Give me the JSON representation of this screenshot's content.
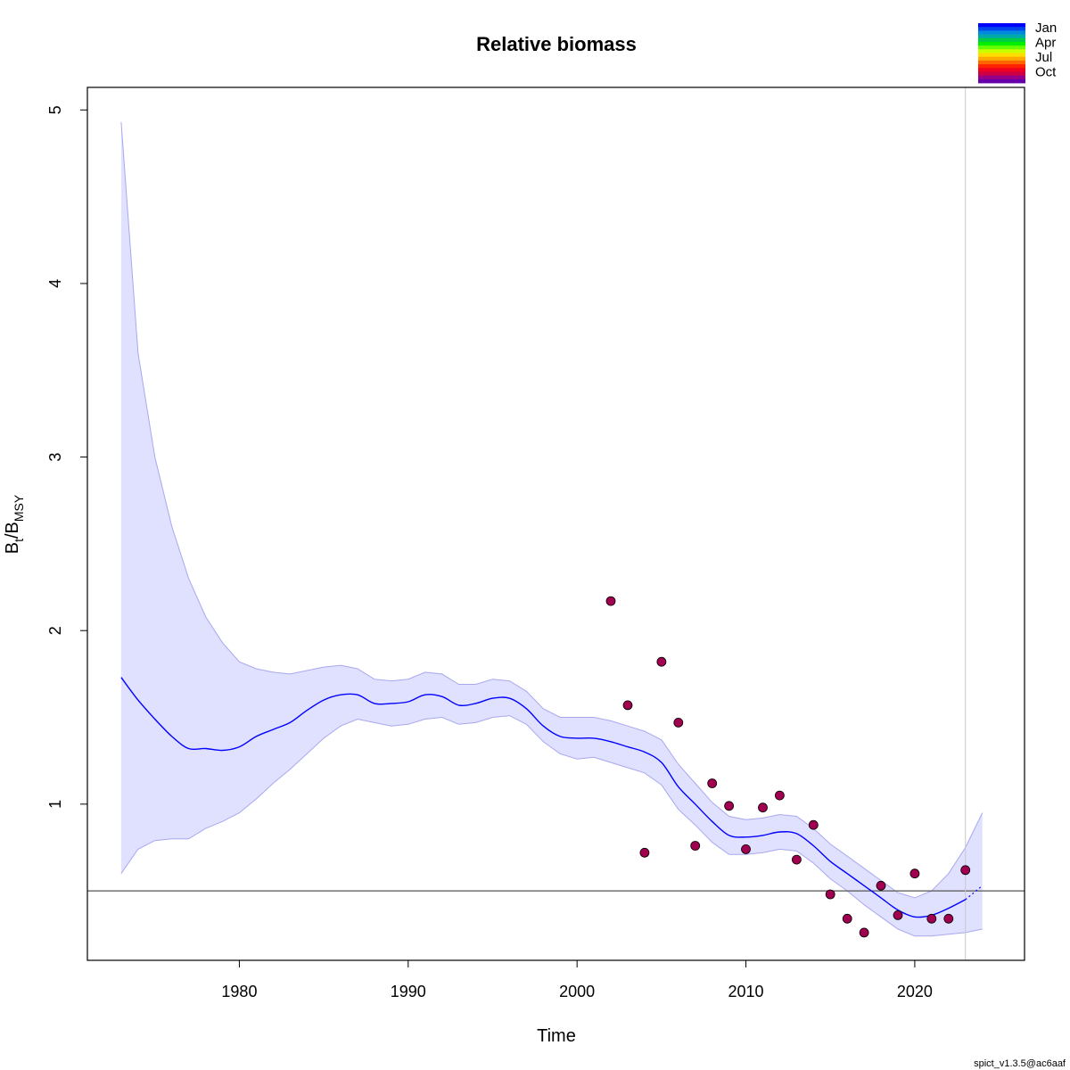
{
  "chart_data": {
    "type": "line",
    "title": "Relative biomass",
    "xlabel": "Time",
    "ylabel": {
      "main": "B",
      "sub1": "t",
      "sep": "/B",
      "sub2": "MSY"
    },
    "xlim": [
      1971,
      2026.5
    ],
    "ylim": [
      0.1,
      5.13
    ],
    "xticks": [
      "1980",
      "1990",
      "2000",
      "2010",
      "2020"
    ],
    "yticks": [
      "1",
      "2",
      "3",
      "4",
      "5"
    ],
    "reference_line": 0.5,
    "vertical_line": 2023,
    "grid": false,
    "colors": {
      "estimate": "#0000ff",
      "band_fill": "#e0e0ff",
      "band_edge": "#a8a8f0",
      "points": "#a0004f",
      "ref_line": "#555555",
      "vline": "#c8c8c8"
    },
    "series": [
      {
        "role": "estimate",
        "x": [
          1973,
          1974,
          1975,
          1976,
          1977,
          1978,
          1979,
          1980,
          1981,
          1982,
          1983,
          1984,
          1985,
          1986,
          1987,
          1988,
          1989,
          1990,
          1991,
          1992,
          1993,
          1994,
          1995,
          1996,
          1997,
          1998,
          1999,
          2000,
          2001,
          2002,
          2003,
          2004,
          2005,
          2006,
          2007,
          2008,
          2009,
          2010,
          2011,
          2012,
          2013,
          2014,
          2015,
          2016,
          2017,
          2018,
          2019,
          2020,
          2021,
          2022,
          2023
        ],
        "y": [
          1.73,
          1.6,
          1.49,
          1.39,
          1.32,
          1.32,
          1.31,
          1.33,
          1.39,
          1.43,
          1.47,
          1.54,
          1.6,
          1.63,
          1.63,
          1.58,
          1.58,
          1.59,
          1.63,
          1.62,
          1.57,
          1.58,
          1.61,
          1.61,
          1.55,
          1.45,
          1.39,
          1.38,
          1.38,
          1.36,
          1.33,
          1.3,
          1.24,
          1.1,
          1.0,
          0.9,
          0.82,
          0.81,
          0.82,
          0.84,
          0.83,
          0.76,
          0.67,
          0.6,
          0.53,
          0.46,
          0.39,
          0.35,
          0.36,
          0.4,
          0.45
        ]
      },
      {
        "role": "prediction",
        "x": [
          2023,
          2023.5,
          2024
        ],
        "y": [
          0.45,
          0.49,
          0.53
        ]
      },
      {
        "role": "confidence-band",
        "x": [
          1973,
          1974,
          1975,
          1976,
          1977,
          1978,
          1979,
          1980,
          1981,
          1982,
          1983,
          1984,
          1985,
          1986,
          1987,
          1988,
          1989,
          1990,
          1991,
          1992,
          1993,
          1994,
          1995,
          1996,
          1997,
          1998,
          1999,
          2000,
          2001,
          2002,
          2003,
          2004,
          2005,
          2006,
          2007,
          2008,
          2009,
          2010,
          2011,
          2012,
          2013,
          2014,
          2015,
          2016,
          2017,
          2018,
          2019,
          2020,
          2021,
          2022,
          2023,
          2024
        ],
        "lower": [
          0.6,
          0.74,
          0.79,
          0.8,
          0.8,
          0.86,
          0.9,
          0.95,
          1.03,
          1.12,
          1.2,
          1.29,
          1.38,
          1.45,
          1.49,
          1.47,
          1.45,
          1.46,
          1.49,
          1.5,
          1.46,
          1.47,
          1.5,
          1.51,
          1.46,
          1.36,
          1.29,
          1.26,
          1.27,
          1.24,
          1.21,
          1.18,
          1.11,
          0.97,
          0.88,
          0.78,
          0.71,
          0.71,
          0.72,
          0.74,
          0.73,
          0.66,
          0.57,
          0.5,
          0.42,
          0.35,
          0.28,
          0.24,
          0.24,
          0.25,
          0.26,
          0.28
        ],
        "upper": [
          4.93,
          3.6,
          3.0,
          2.6,
          2.3,
          2.08,
          1.93,
          1.82,
          1.78,
          1.76,
          1.75,
          1.77,
          1.79,
          1.8,
          1.78,
          1.72,
          1.71,
          1.72,
          1.76,
          1.75,
          1.69,
          1.69,
          1.72,
          1.71,
          1.65,
          1.55,
          1.5,
          1.5,
          1.5,
          1.48,
          1.45,
          1.42,
          1.37,
          1.23,
          1.12,
          1.01,
          0.93,
          0.91,
          0.92,
          0.94,
          0.93,
          0.86,
          0.77,
          0.7,
          0.63,
          0.56,
          0.49,
          0.46,
          0.5,
          0.6,
          0.75,
          0.95
        ]
      },
      {
        "role": "index-observations",
        "x": [
          2002,
          2003,
          2004,
          2005,
          2006,
          2007,
          2008,
          2009,
          2010,
          2011,
          2012,
          2013,
          2014,
          2015,
          2016,
          2017,
          2018,
          2019,
          2020,
          2021,
          2022,
          2023
        ],
        "y": [
          2.17,
          1.57,
          0.72,
          1.82,
          1.47,
          0.76,
          1.12,
          0.99,
          0.74,
          0.98,
          1.05,
          0.68,
          0.88,
          0.48,
          0.34,
          0.26,
          0.53,
          0.36,
          0.6,
          0.34,
          0.34,
          0.62
        ]
      }
    ],
    "season_legend": {
      "placement": "top-right",
      "labels": [
        "Jan",
        "Apr",
        "Jul",
        "Oct"
      ],
      "colors": [
        "#0000ff",
        "#0044ee",
        "#0088dd",
        "#00aaaa",
        "#00cc44",
        "#00ee00",
        "#66ff00",
        "#ccff00",
        "#ffdd00",
        "#ffaa00",
        "#ff6600",
        "#ff2200",
        "#ee0022",
        "#cc0044",
        "#990088",
        "#6600aa"
      ]
    },
    "footer": "spict_v1.3.5@ac6aaf"
  }
}
